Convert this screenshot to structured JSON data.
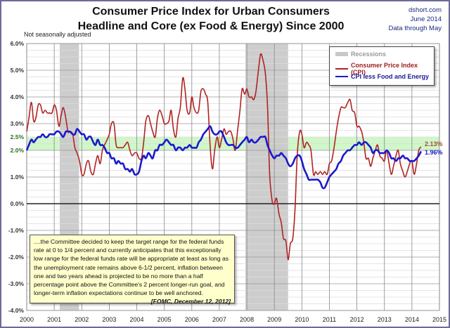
{
  "header": {
    "title_line1": "Consumer Price Index for Urban Consumers",
    "title_line2": "Headline and Core (ex Food & Energy) Since 2000",
    "source_line1": "dshort.com",
    "source_line2": "June 2014",
    "source_line3": "Data through May",
    "note": "Not seasonally adjusted"
  },
  "legend": {
    "recessions": "Recessions",
    "cpi": "Consumer Price Index (CPI)",
    "core": "CPI less Food and Energy"
  },
  "quote": {
    "text": "....the Committee decided to keep the target range for the federal funds rate at 0 to 1/4 percent and currently anticipates that this exceptionally low range for the federal funds rate will be appropriate at least as long as the unemployment rate remains above 6-1/2 percent, inflation between one and two years ahead is projected to be no more than a half percentage point above the Committee's 2 percent longer-run goal, and longer-term inflation expectations continue to be well anchored.",
    "citation": "[FOMC, December 12, 2012]"
  },
  "end_labels": {
    "cpi": "2.13%",
    "core": "1.96%"
  },
  "chart_data": {
    "type": "line",
    "title": "Consumer Price Index for Urban Consumers — Headline and Core (ex Food & Energy) Since 2000",
    "xlabel": "",
    "ylabel": "",
    "xlim": [
      2000,
      2015
    ],
    "ylim": [
      -4.0,
      6.0
    ],
    "x_ticks": [
      "2000",
      "2001",
      "2002",
      "2003",
      "2004",
      "2005",
      "2006",
      "2007",
      "2008",
      "2009",
      "2010",
      "2011",
      "2012",
      "2013",
      "2014",
      "2015"
    ],
    "y_ticks": [
      "6.0%",
      "5.0%",
      "4.0%",
      "3.0%",
      "2.5%",
      "2.0%",
      "1.0%",
      "0.0%",
      "-1.0%",
      "-2.0%",
      "-3.0%",
      "-4.0%"
    ],
    "y_tick_values": [
      6.0,
      5.0,
      4.0,
      3.0,
      2.5,
      2.0,
      1.0,
      0.0,
      -1.0,
      -2.0,
      -3.0,
      -4.0
    ],
    "grid": true,
    "target_band": [
      2.0,
      2.5
    ],
    "recessions": [
      [
        2001.2,
        2001.9
      ],
      [
        2007.95,
        2009.5
      ]
    ],
    "colors": {
      "cpi": "#b22222",
      "core": "#1a1acc",
      "band": "#c8f5c0",
      "recession": "#c8c8c8"
    },
    "legend_position": "top-right",
    "series": [
      {
        "name": "Consumer Price Index (CPI)",
        "x": [
          2000.0,
          2000.08,
          2000.17,
          2000.25,
          2000.33,
          2000.42,
          2000.5,
          2000.58,
          2000.67,
          2000.75,
          2000.83,
          2000.92,
          2001.0,
          2001.08,
          2001.17,
          2001.25,
          2001.33,
          2001.42,
          2001.5,
          2001.58,
          2001.67,
          2001.75,
          2001.83,
          2001.92,
          2002.0,
          2002.08,
          2002.17,
          2002.25,
          2002.33,
          2002.42,
          2002.5,
          2002.58,
          2002.67,
          2002.75,
          2002.83,
          2002.92,
          2003.0,
          2003.08,
          2003.17,
          2003.25,
          2003.33,
          2003.42,
          2003.5,
          2003.58,
          2003.67,
          2003.75,
          2003.83,
          2003.92,
          2004.0,
          2004.08,
          2004.17,
          2004.25,
          2004.33,
          2004.42,
          2004.5,
          2004.58,
          2004.67,
          2004.75,
          2004.83,
          2004.92,
          2005.0,
          2005.08,
          2005.17,
          2005.25,
          2005.33,
          2005.42,
          2005.5,
          2005.58,
          2005.67,
          2005.75,
          2005.83,
          2005.92,
          2006.0,
          2006.08,
          2006.17,
          2006.25,
          2006.33,
          2006.42,
          2006.5,
          2006.58,
          2006.67,
          2006.75,
          2006.83,
          2006.92,
          2007.0,
          2007.08,
          2007.17,
          2007.25,
          2007.33,
          2007.42,
          2007.5,
          2007.58,
          2007.67,
          2007.75,
          2007.83,
          2007.92,
          2008.0,
          2008.08,
          2008.17,
          2008.25,
          2008.33,
          2008.42,
          2008.5,
          2008.58,
          2008.67,
          2008.75,
          2008.83,
          2008.92,
          2009.0,
          2009.08,
          2009.17,
          2009.25,
          2009.33,
          2009.42,
          2009.5,
          2009.58,
          2009.67,
          2009.75,
          2009.83,
          2009.92,
          2010.0,
          2010.08,
          2010.17,
          2010.25,
          2010.33,
          2010.42,
          2010.5,
          2010.58,
          2010.67,
          2010.75,
          2010.83,
          2010.92,
          2011.0,
          2011.08,
          2011.17,
          2011.25,
          2011.33,
          2011.42,
          2011.5,
          2011.58,
          2011.67,
          2011.75,
          2011.83,
          2011.92,
          2012.0,
          2012.08,
          2012.17,
          2012.25,
          2012.33,
          2012.42,
          2012.5,
          2012.58,
          2012.67,
          2012.75,
          2012.83,
          2012.92,
          2013.0,
          2013.08,
          2013.17,
          2013.25,
          2013.33,
          2013.42,
          2013.5,
          2013.58,
          2013.67,
          2013.75,
          2013.83,
          2013.92,
          2014.0,
          2014.08,
          2014.17,
          2014.25,
          2014.33
        ],
        "values": [
          2.7,
          3.2,
          3.8,
          3.1,
          3.2,
          3.7,
          3.7,
          3.4,
          3.5,
          3.4,
          3.4,
          3.4,
          3.7,
          3.5,
          2.9,
          3.3,
          3.6,
          3.2,
          2.7,
          2.7,
          2.6,
          2.1,
          1.9,
          1.6,
          1.1,
          1.1,
          1.5,
          1.6,
          1.2,
          1.1,
          1.5,
          1.8,
          1.5,
          2.0,
          2.2,
          2.4,
          2.6,
          3.0,
          3.0,
          2.2,
          2.1,
          2.1,
          2.1,
          2.2,
          2.3,
          2.0,
          1.8,
          1.9,
          1.9,
          1.7,
          1.7,
          2.3,
          3.1,
          3.3,
          3.0,
          2.7,
          2.5,
          3.2,
          3.5,
          3.3,
          3.0,
          3.0,
          3.1,
          3.5,
          2.8,
          2.5,
          3.2,
          3.6,
          4.7,
          4.3,
          3.5,
          3.4,
          4.0,
          3.6,
          3.4,
          3.5,
          4.2,
          4.3,
          4.1,
          3.8,
          2.1,
          1.3,
          2.0,
          2.5,
          2.1,
          2.4,
          2.8,
          2.6,
          2.7,
          2.7,
          2.4,
          2.0,
          2.8,
          3.5,
          4.3,
          4.1,
          4.3,
          4.0,
          4.0,
          3.9,
          4.2,
          5.0,
          5.6,
          5.4,
          4.9,
          3.7,
          1.1,
          0.1,
          0.0,
          0.2,
          -0.4,
          -0.7,
          -1.3,
          -1.4,
          -2.1,
          -1.5,
          -1.3,
          -0.2,
          1.8,
          2.7,
          2.6,
          2.1,
          2.3,
          2.2,
          2.0,
          1.1,
          1.2,
          1.1,
          1.2,
          1.1,
          1.2,
          1.1,
          1.5,
          1.6,
          2.1,
          2.7,
          3.2,
          3.6,
          3.6,
          3.6,
          3.8,
          3.9,
          3.5,
          3.4,
          2.9,
          2.9,
          2.7,
          2.3,
          1.7,
          1.7,
          1.4,
          1.7,
          2.0,
          2.2,
          1.8,
          1.7,
          1.6,
          2.0,
          1.5,
          1.1,
          1.4,
          1.8,
          2.0,
          1.5,
          1.2,
          1.0,
          1.2,
          1.5,
          1.6,
          1.1,
          1.5,
          2.0,
          2.13
        ]
      },
      {
        "name": "CPI less Food and Energy",
        "x": [
          2000.0,
          2000.08,
          2000.17,
          2000.25,
          2000.33,
          2000.42,
          2000.5,
          2000.58,
          2000.67,
          2000.75,
          2000.83,
          2000.92,
          2001.0,
          2001.08,
          2001.17,
          2001.25,
          2001.33,
          2001.42,
          2001.5,
          2001.58,
          2001.67,
          2001.75,
          2001.83,
          2001.92,
          2002.0,
          2002.08,
          2002.17,
          2002.25,
          2002.33,
          2002.42,
          2002.5,
          2002.58,
          2002.67,
          2002.75,
          2002.83,
          2002.92,
          2003.0,
          2003.08,
          2003.17,
          2003.25,
          2003.33,
          2003.42,
          2003.5,
          2003.58,
          2003.67,
          2003.75,
          2003.83,
          2003.92,
          2004.0,
          2004.08,
          2004.17,
          2004.25,
          2004.33,
          2004.42,
          2004.5,
          2004.58,
          2004.67,
          2004.75,
          2004.83,
          2004.92,
          2005.0,
          2005.08,
          2005.17,
          2005.25,
          2005.33,
          2005.42,
          2005.5,
          2005.58,
          2005.67,
          2005.75,
          2005.83,
          2005.92,
          2006.0,
          2006.08,
          2006.17,
          2006.25,
          2006.33,
          2006.42,
          2006.5,
          2006.58,
          2006.67,
          2006.75,
          2006.83,
          2006.92,
          2007.0,
          2007.08,
          2007.17,
          2007.25,
          2007.33,
          2007.42,
          2007.5,
          2007.58,
          2007.67,
          2007.75,
          2007.83,
          2007.92,
          2008.0,
          2008.08,
          2008.17,
          2008.25,
          2008.33,
          2008.42,
          2008.5,
          2008.58,
          2008.67,
          2008.75,
          2008.83,
          2008.92,
          2009.0,
          2009.08,
          2009.17,
          2009.25,
          2009.33,
          2009.42,
          2009.5,
          2009.58,
          2009.67,
          2009.75,
          2009.83,
          2009.92,
          2010.0,
          2010.08,
          2010.17,
          2010.25,
          2010.33,
          2010.42,
          2010.5,
          2010.58,
          2010.67,
          2010.75,
          2010.83,
          2010.92,
          2011.0,
          2011.08,
          2011.17,
          2011.25,
          2011.33,
          2011.42,
          2011.5,
          2011.58,
          2011.67,
          2011.75,
          2011.83,
          2011.92,
          2012.0,
          2012.08,
          2012.17,
          2012.25,
          2012.33,
          2012.42,
          2012.5,
          2012.58,
          2012.67,
          2012.75,
          2012.83,
          2012.92,
          2013.0,
          2013.08,
          2013.17,
          2013.25,
          2013.33,
          2013.42,
          2013.5,
          2013.58,
          2013.67,
          2013.75,
          2013.83,
          2013.92,
          2014.0,
          2014.08,
          2014.17,
          2014.25,
          2014.33
        ],
        "values": [
          2.0,
          2.2,
          2.4,
          2.3,
          2.4,
          2.5,
          2.5,
          2.6,
          2.5,
          2.5,
          2.6,
          2.6,
          2.6,
          2.7,
          2.7,
          2.6,
          2.5,
          2.7,
          2.7,
          2.7,
          2.6,
          2.6,
          2.8,
          2.7,
          2.6,
          2.6,
          2.4,
          2.5,
          2.5,
          2.3,
          2.2,
          2.4,
          2.2,
          2.2,
          2.1,
          1.9,
          1.9,
          1.7,
          1.7,
          1.5,
          1.6,
          1.5,
          1.5,
          1.3,
          1.3,
          1.2,
          1.3,
          1.1,
          1.1,
          1.2,
          1.6,
          1.8,
          1.7,
          1.9,
          1.8,
          1.7,
          2.0,
          2.0,
          2.2,
          2.2,
          2.3,
          2.4,
          2.3,
          2.2,
          2.2,
          2.0,
          2.1,
          2.1,
          2.0,
          2.1,
          2.1,
          2.2,
          2.1,
          2.1,
          2.1,
          2.3,
          2.4,
          2.6,
          2.7,
          2.8,
          2.9,
          2.7,
          2.6,
          2.6,
          2.7,
          2.7,
          2.5,
          2.3,
          2.2,
          2.2,
          2.2,
          2.1,
          2.1,
          2.2,
          2.3,
          2.4,
          2.5,
          2.3,
          2.4,
          2.3,
          2.3,
          2.4,
          2.5,
          2.5,
          2.5,
          2.2,
          2.0,
          1.8,
          1.7,
          1.8,
          1.8,
          1.9,
          1.8,
          1.7,
          1.5,
          1.4,
          1.5,
          1.7,
          1.8,
          1.8,
          1.6,
          1.3,
          1.1,
          0.9,
          0.9,
          0.9,
          0.9,
          0.9,
          0.8,
          0.6,
          0.6,
          0.8,
          1.0,
          1.1,
          1.2,
          1.3,
          1.5,
          1.6,
          1.8,
          1.9,
          2.0,
          2.0,
          2.1,
          2.2,
          2.2,
          2.3,
          2.2,
          2.3,
          2.3,
          2.2,
          2.1,
          1.9,
          2.0,
          2.0,
          1.9,
          1.9,
          1.9,
          2.0,
          1.9,
          1.7,
          1.7,
          1.6,
          1.7,
          1.7,
          1.8,
          1.7,
          1.7,
          1.6,
          1.6,
          1.6,
          1.7,
          1.8,
          1.96
        ]
      }
    ]
  }
}
